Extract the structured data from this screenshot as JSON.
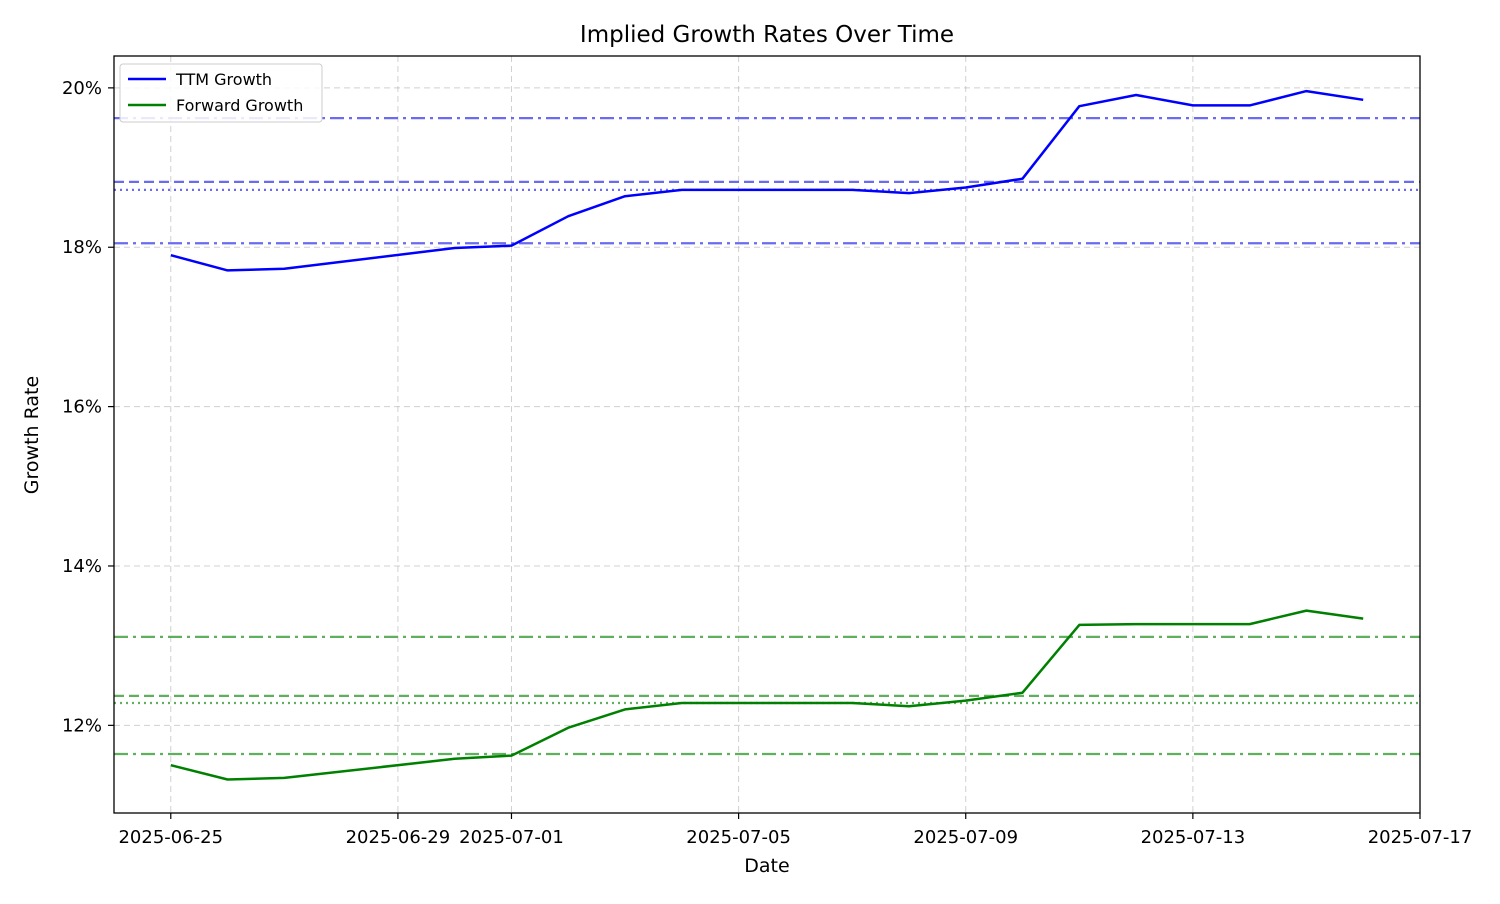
{
  "chart_data": {
    "type": "line",
    "title": "Implied Growth Rates Over Time",
    "xlabel": "Date",
    "ylabel": "Growth Rate",
    "xlim": [
      "2025-06-24",
      "2025-07-17"
    ],
    "ylim": [
      10.9,
      20.4
    ],
    "x_ticks": [
      "2025-06-25",
      "2025-06-29",
      "2025-07-01",
      "2025-07-05",
      "2025-07-09",
      "2025-07-13",
      "2025-07-17"
    ],
    "y_ticks": [
      {
        "value": 12,
        "label": "12%"
      },
      {
        "value": 14,
        "label": "14%"
      },
      {
        "value": 16,
        "label": "16%"
      },
      {
        "value": 18,
        "label": "18%"
      },
      {
        "value": 20,
        "label": "20%"
      }
    ],
    "grid": true,
    "legend_position": "upper-left",
    "x": [
      "2025-06-25",
      "2025-06-26",
      "2025-06-27",
      "2025-06-30",
      "2025-07-01",
      "2025-07-02",
      "2025-07-03",
      "2025-07-04",
      "2025-07-07",
      "2025-07-08",
      "2025-07-09",
      "2025-07-10",
      "2025-07-11",
      "2025-07-12",
      "2025-07-13",
      "2025-07-14",
      "2025-07-15",
      "2025-07-16"
    ],
    "series": [
      {
        "name": "TTM Growth",
        "color": "#0000ff",
        "values": [
          17.9,
          17.71,
          17.73,
          17.99,
          18.02,
          18.39,
          18.64,
          18.72,
          18.72,
          18.68,
          18.75,
          18.86,
          19.77,
          19.91,
          19.78,
          19.78,
          19.96,
          19.85
        ],
        "reference_lines": [
          {
            "value": 19.62,
            "style": "dashdot"
          },
          {
            "value": 18.82,
            "style": "dashed"
          },
          {
            "value": 18.72,
            "style": "dotted"
          },
          {
            "value": 18.05,
            "style": "dashdot"
          }
        ],
        "reference_color": "#5b5bf0"
      },
      {
        "name": "Forward Growth",
        "color": "#008000",
        "values": [
          11.5,
          11.32,
          11.34,
          11.58,
          11.62,
          11.97,
          12.2,
          12.28,
          12.28,
          12.24,
          12.31,
          12.41,
          13.26,
          13.27,
          13.27,
          13.27,
          13.44,
          13.34
        ],
        "reference_lines": [
          {
            "value": 13.11,
            "style": "dashdot"
          },
          {
            "value": 12.37,
            "style": "dashed"
          },
          {
            "value": 12.28,
            "style": "dotted"
          },
          {
            "value": 11.64,
            "style": "dashdot"
          }
        ],
        "reference_color": "#4ea64e"
      }
    ]
  }
}
